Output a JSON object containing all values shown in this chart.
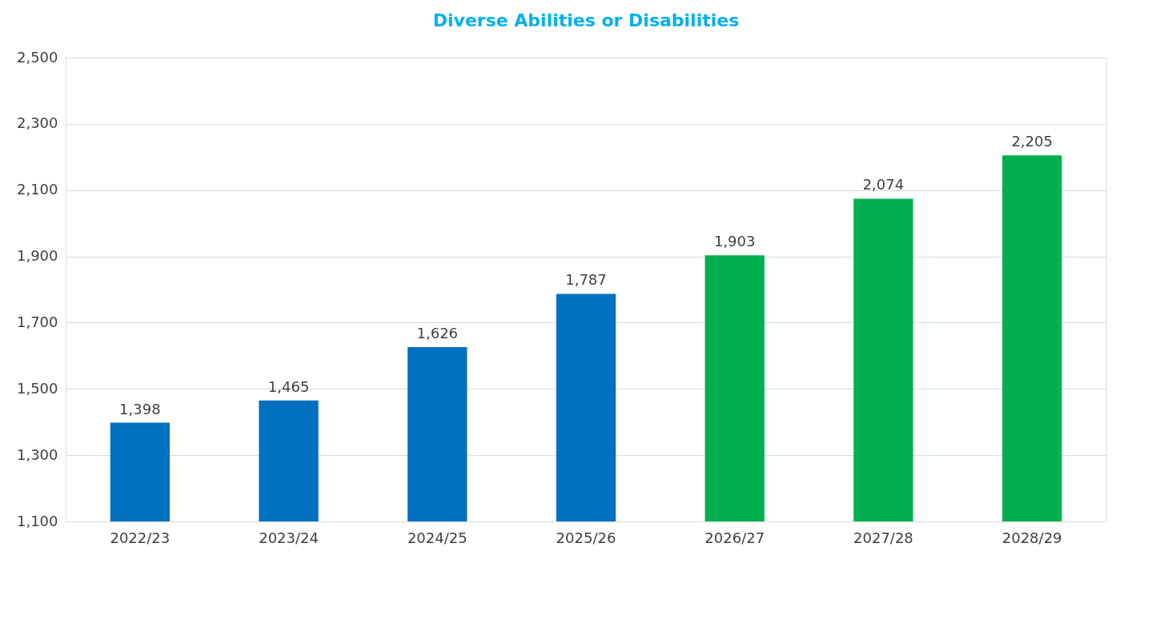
{
  "chart_data": {
    "type": "bar",
    "title": "Diverse Abilities or Disabilities",
    "categories": [
      "2022/23",
      "2023/24",
      "2024/25",
      "2025/26",
      "2026/27",
      "2027/28",
      "2028/29"
    ],
    "values": [
      1398,
      1465,
      1626,
      1787,
      1903,
      2074,
      2205
    ],
    "colors": [
      "#0070c0",
      "#0070c0",
      "#0070c0",
      "#0070c0",
      "#00b050",
      "#00b050",
      "#00b050"
    ],
    "ylim": [
      1100,
      2500
    ],
    "yticks": [
      {
        "value": 1100,
        "label": "1,100"
      },
      {
        "value": 1300,
        "label": "1,300"
      },
      {
        "value": 1500,
        "label": "1,500"
      },
      {
        "value": 1700,
        "label": "1,700"
      },
      {
        "value": 1900,
        "label": "1,900"
      },
      {
        "value": 2100,
        "label": "2,100"
      },
      {
        "value": 2300,
        "label": "2,300"
      },
      {
        "value": 2500,
        "label": "2,500"
      }
    ],
    "value_labels": [
      "1,398",
      "1,465",
      "1,626",
      "1,787",
      "1,903",
      "2,074",
      "2,205"
    ],
    "grid": "y"
  }
}
